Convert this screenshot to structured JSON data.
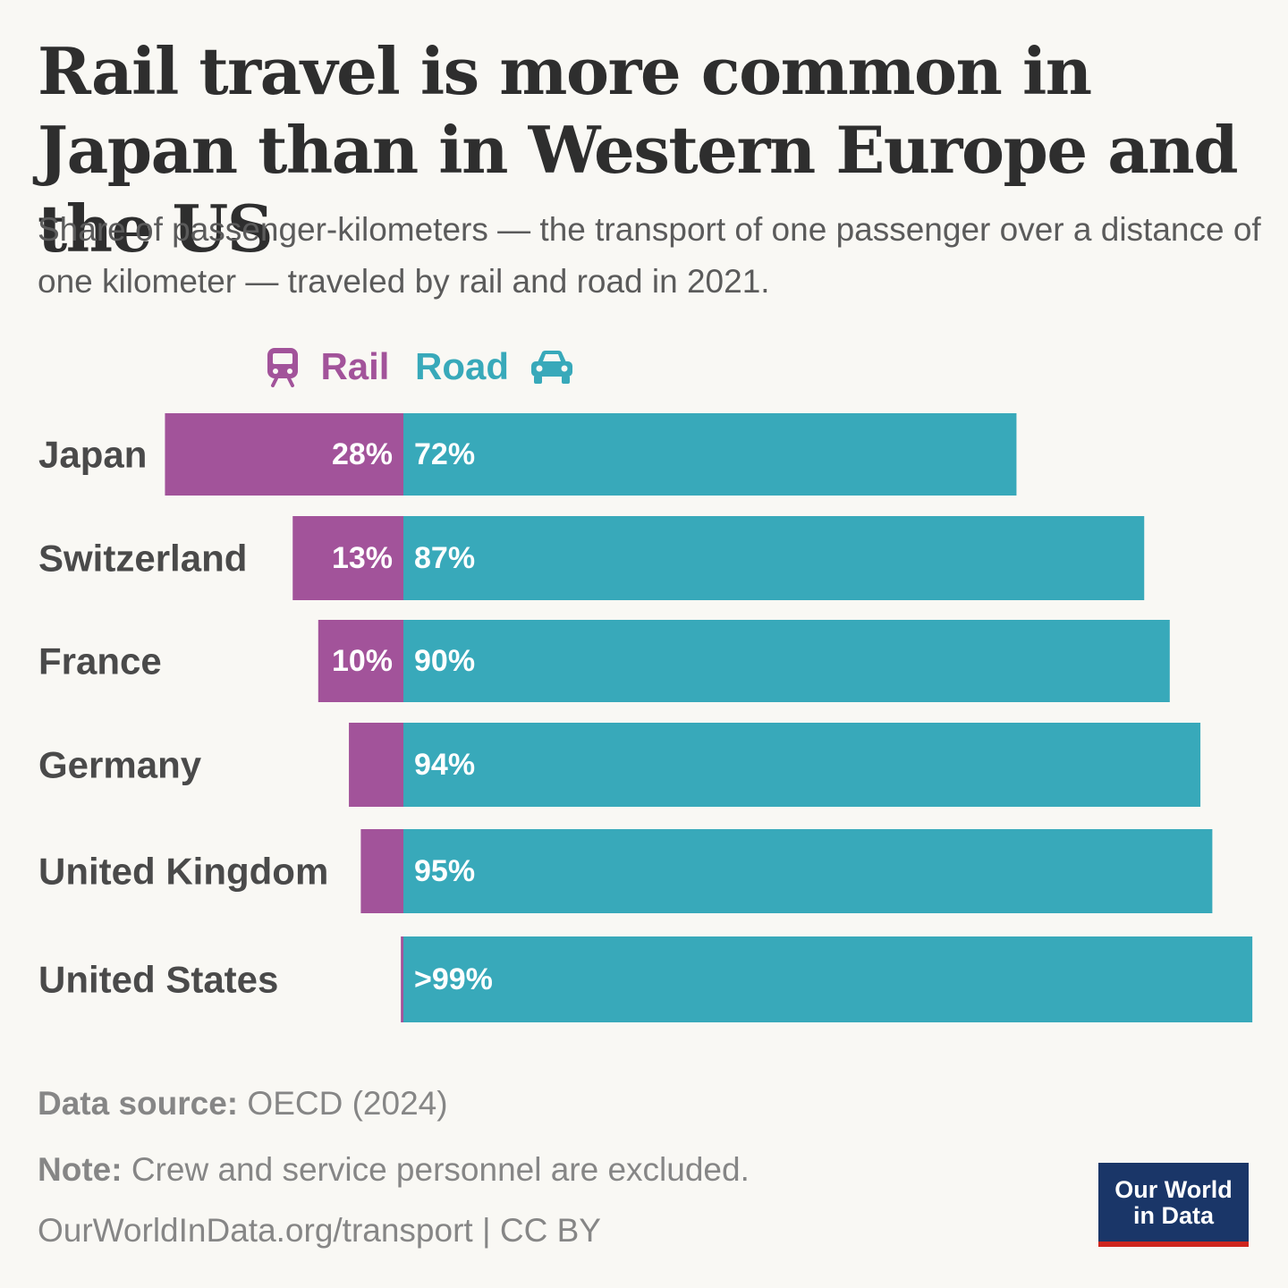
{
  "header": {
    "title": "Rail travel is more common in Japan than in Western Europe and the US",
    "subtitle": "Share of passenger-kilometers — the transport of one passenger over a distance of one kilometer — traveled by rail and road in 2021."
  },
  "legend": {
    "rail": {
      "label": "Rail",
      "icon": "train-icon",
      "color": "#a2539a"
    },
    "road": {
      "label": "Road",
      "icon": "car-icon",
      "color": "#38a9ba"
    }
  },
  "chart_data": {
    "type": "bar",
    "orientation": "horizontal",
    "stacked": "diverging",
    "categories": [
      "Japan",
      "Switzerland",
      "France",
      "Germany",
      "United Kingdom",
      "United States"
    ],
    "series": [
      {
        "name": "Rail",
        "values": [
          28,
          13,
          10,
          6.4,
          5,
          0.3
        ],
        "labels": [
          "28%",
          "13%",
          "10%",
          "",
          "",
          ""
        ],
        "color": "#a2539a"
      },
      {
        "name": "Road",
        "values": [
          72,
          87,
          90,
          93.6,
          95,
          99.7
        ],
        "labels": [
          "72%",
          "87%",
          "90%",
          "94%",
          "95%",
          ">99%"
        ],
        "color": "#38a9ba"
      }
    ],
    "unit": "%",
    "legend_position": "top",
    "grid": false
  },
  "footer": {
    "source_label": "Data source:",
    "source_value": "OECD (2024)",
    "note_label": "Note:",
    "note_value": "Crew and service personnel are excluded.",
    "url": "OurWorldInData.org/transport | CC BY"
  },
  "logo": {
    "line1": "Our World",
    "line2": "in Data"
  }
}
